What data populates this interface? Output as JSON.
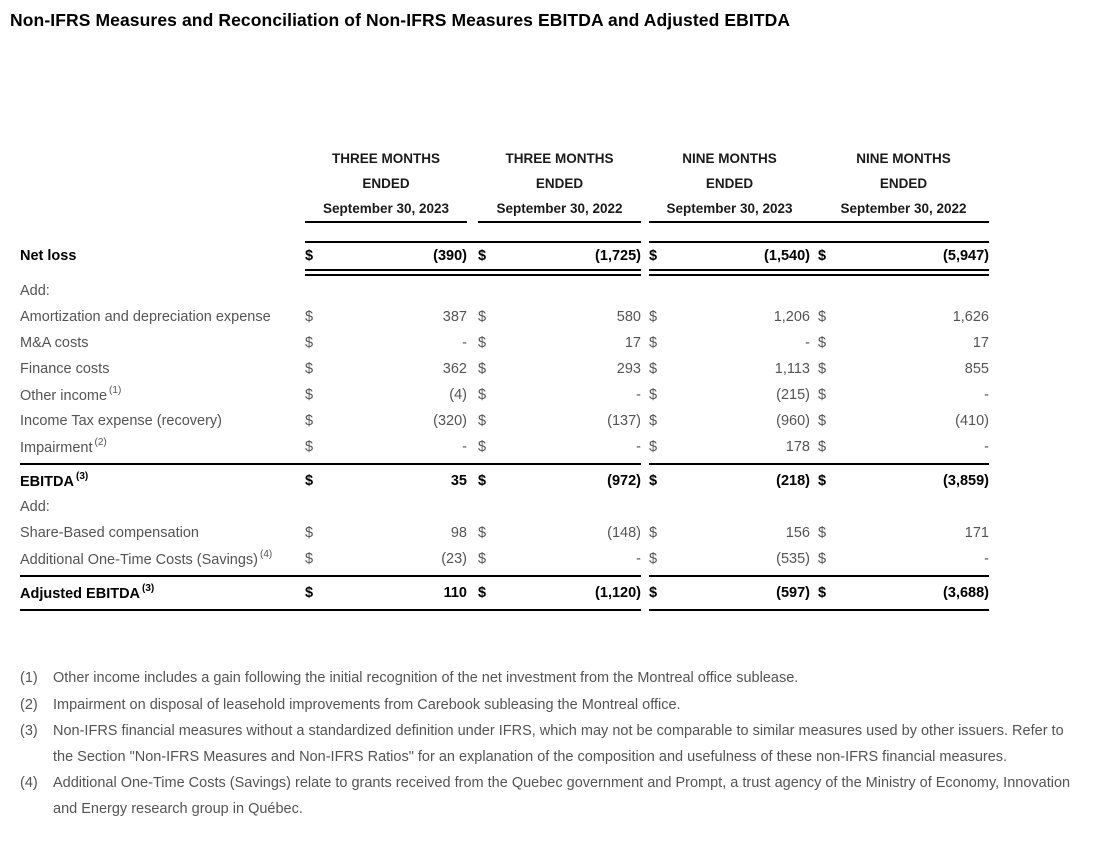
{
  "title": "Non-IFRS Measures and Reconciliation of Non-IFRS Measures EBITDA and Adjusted EBITDA",
  "table": {
    "currency_symbol": "$",
    "columns": [
      {
        "line1": "THREE MONTHS",
        "line2": "ENDED",
        "line3": "September 30, 2023"
      },
      {
        "line1": "THREE MONTHS",
        "line2": "ENDED",
        "line3": "September 30, 2022"
      },
      {
        "line1": "NINE MONTHS",
        "line2": "ENDED",
        "line3": "September 30, 2023"
      },
      {
        "line1": "NINE MONTHS",
        "line2": "ENDED",
        "line3": "September 30, 2022"
      }
    ],
    "rows": [
      {
        "id": "net-loss",
        "type": "netloss",
        "bold": true,
        "label": "Net loss",
        "sup": "",
        "values": [
          "(390)",
          "(1,725)",
          "(1,540)",
          "(5,947)"
        ]
      },
      {
        "id": "add-1",
        "type": "section",
        "bold": false,
        "label": "Add:",
        "sup": "",
        "values": null
      },
      {
        "id": "amortization-depreciation",
        "type": "data",
        "bold": false,
        "label": "Amortization and depreciation expense",
        "sup": "",
        "values": [
          "387",
          "580",
          "1,206",
          "1,626"
        ]
      },
      {
        "id": "ma-costs",
        "type": "data",
        "bold": false,
        "label": "M&A costs",
        "sup": "",
        "values": [
          "-",
          "17",
          "-",
          "17"
        ]
      },
      {
        "id": "finance-costs",
        "type": "data",
        "bold": false,
        "label": "Finance costs",
        "sup": "",
        "values": [
          "362",
          "293",
          "1,113",
          "855"
        ]
      },
      {
        "id": "other-income",
        "type": "data",
        "bold": false,
        "label": "Other income",
        "sup": "(1)",
        "values": [
          "(4)",
          "-",
          "(215)",
          "-"
        ]
      },
      {
        "id": "income-tax",
        "type": "data",
        "bold": false,
        "label": "Income Tax expense (recovery)",
        "sup": "",
        "values": [
          "(320)",
          "(137)",
          "(960)",
          "(410)"
        ]
      },
      {
        "id": "impairment",
        "type": "data",
        "bold": false,
        "label": "Impairment",
        "sup": "(2)",
        "values": [
          "-",
          "-",
          "178",
          "-"
        ]
      },
      {
        "id": "ebitda",
        "type": "ebitda",
        "bold": true,
        "label": "EBITDA",
        "sup": "(3)",
        "values": [
          "35",
          "(972)",
          "(218)",
          "(3,859)"
        ]
      },
      {
        "id": "add-2",
        "type": "section",
        "bold": false,
        "label": "Add:",
        "sup": "",
        "values": null
      },
      {
        "id": "share-based-compensation",
        "type": "data",
        "bold": false,
        "label": "Share-Based compensation",
        "sup": "",
        "values": [
          "98",
          "(148)",
          "156",
          "171"
        ]
      },
      {
        "id": "additional-one-time-costs",
        "type": "data",
        "bold": false,
        "label": "Additional One-Time Costs (Savings)",
        "sup": "(4)",
        "values": [
          "(23)",
          "-",
          "(535)",
          "-"
        ]
      },
      {
        "id": "adjusted-ebitda",
        "type": "adjusted",
        "bold": true,
        "label": "Adjusted EBITDA",
        "sup": "(3)",
        "values": [
          "110",
          "(1,120)",
          "(597)",
          "(3,688)"
        ]
      }
    ]
  },
  "footnotes": [
    {
      "num": "(1)",
      "text": "Other income includes a gain following the initial recognition of the net investment from the Montreal office sublease."
    },
    {
      "num": "(2)",
      "text": "Impairment on disposal of leasehold improvements from Carebook subleasing the Montreal office."
    },
    {
      "num": "(3)",
      "text": "Non-IFRS financial measures without a standardized definition under IFRS, which may not be comparable to similar measures used by other issuers. Refer to the Section \"Non-IFRS Measures and Non-IFRS Ratios\" for an explanation of the composition and usefulness of these non-IFRS financial measures."
    },
    {
      "num": "(4)",
      "text": "Additional One-Time Costs (Savings) relate to grants received from the Quebec government and Prompt, a trust agency of the Ministry of Economy, Innovation and Energy research group in Québec."
    }
  ]
}
